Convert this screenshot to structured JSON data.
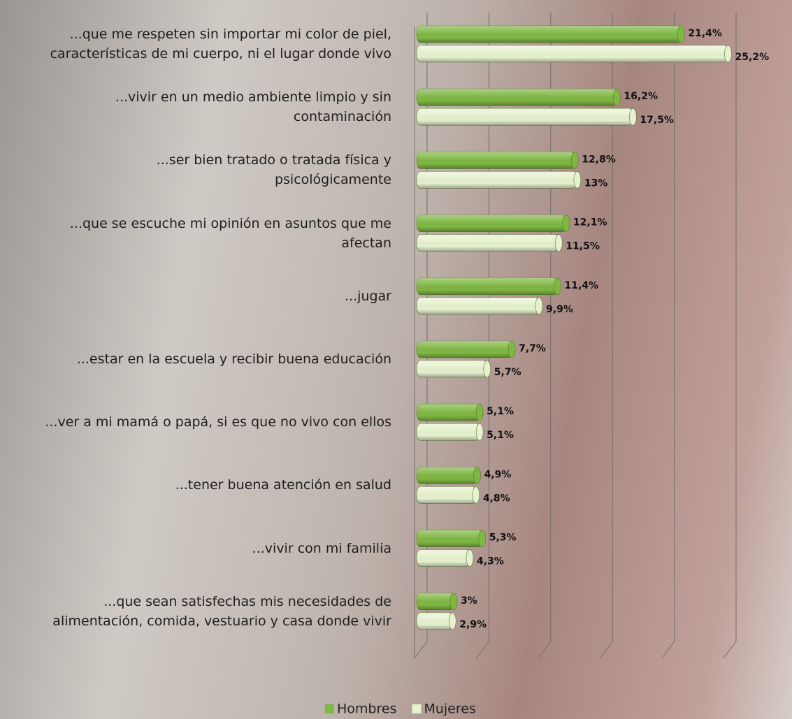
{
  "chart_data": {
    "type": "bar",
    "orientation": "horizontal",
    "categories": [
      "...que me respeten sin importar mi color de piel,\ncaracterísticas de mi cuerpo, ni el lugar donde vivo",
      "...vivir en un medio ambiente limpio y sin\ncontaminación",
      "...ser bien tratado o tratada física y\npsicológicamente",
      "...que se escuche mi opinión en asuntos que me\nafectan",
      "...jugar",
      "...estar en la escuela y recibir buena educación",
      "...ver a mi mamá o papá, si es que no vivo con ellos",
      "...tener buena atención en salud",
      "...vivir con mi familia",
      "...que sean satisfechas mis necesidades de\nalimentación, comida, vestuario y casa donde vivir"
    ],
    "series": [
      {
        "name": "Hombres",
        "color": "#7fb743",
        "values": [
          21.4,
          16.2,
          12.8,
          12.1,
          11.4,
          7.7,
          5.1,
          4.9,
          5.3,
          3
        ],
        "value_labels": [
          "21,4%",
          "16,2%",
          "12,8%",
          "12,1%",
          "11,4%",
          "7,7%",
          "5,1%",
          "4,9%",
          "5,3%",
          "3%"
        ]
      },
      {
        "name": "Mujeres",
        "color": "#e6f2cf",
        "values": [
          25.2,
          17.5,
          13,
          11.5,
          9.9,
          5.7,
          5.1,
          4.8,
          4.3,
          2.9
        ],
        "value_labels": [
          "25,2%",
          "17,5%",
          "13%",
          "11,5%",
          "9,9%",
          "5,7%",
          "5,1%",
          "4,8%",
          "4,3%",
          "2,9%"
        ]
      }
    ],
    "xlim": [
      0,
      25
    ],
    "xticks": [
      0,
      5,
      10,
      15,
      20,
      25
    ],
    "grid": true
  }
}
